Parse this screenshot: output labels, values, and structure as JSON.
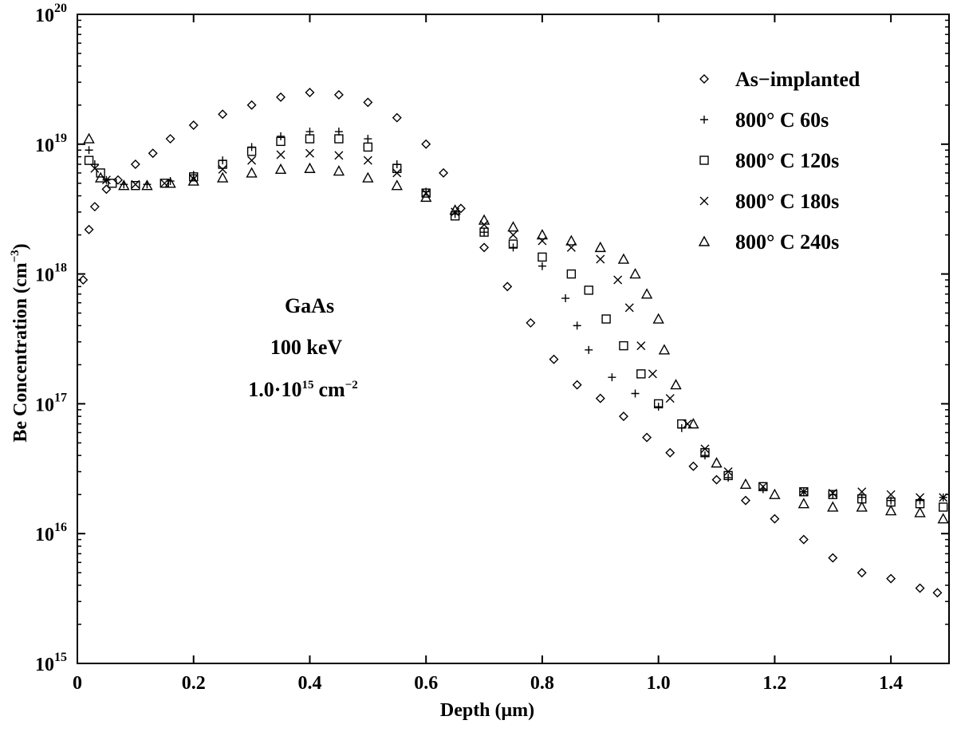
{
  "chart_data": {
    "type": "scatter",
    "title": "",
    "xlabel": "Depth (μm)",
    "ylabel_main": "Be Concentration (cm",
    "ylabel_exp": "−3",
    "ylabel_close": ")",
    "xlim": [
      0,
      1.5
    ],
    "ylim_log10": [
      15,
      20
    ],
    "yscale": "log",
    "grid": false,
    "x_ticks": [
      {
        "value": 0,
        "label": "0"
      },
      {
        "value": 0.2,
        "label": "0.2"
      },
      {
        "value": 0.4,
        "label": "0.4"
      },
      {
        "value": 0.6,
        "label": "0.6"
      },
      {
        "value": 0.8,
        "label": "0.8"
      },
      {
        "value": 1.0,
        "label": "1.0"
      },
      {
        "value": 1.2,
        "label": "1.2"
      },
      {
        "value": 1.4,
        "label": "1.4"
      }
    ],
    "y_ticks": [
      {
        "exp": 15,
        "base": "10",
        "sup": "15"
      },
      {
        "exp": 16,
        "base": "10",
        "sup": "16"
      },
      {
        "exp": 17,
        "base": "10",
        "sup": "17"
      },
      {
        "exp": 18,
        "base": "10",
        "sup": "18"
      },
      {
        "exp": 19,
        "base": "10",
        "sup": "19"
      },
      {
        "exp": 20,
        "base": "10",
        "sup": "20"
      }
    ],
    "legend_position": "top-right",
    "annotations": {
      "material": "GaAs",
      "energy": "100 keV",
      "dose_base": "1.0·10",
      "dose_exp": "15",
      "dose_unit": "cm",
      "dose_unit_exp": "−2"
    },
    "series": [
      {
        "name": "As−implanted",
        "marker": "diamond",
        "points": [
          [
            0.01,
            9e+17
          ],
          [
            0.02,
            2.2e+18
          ],
          [
            0.03,
            3.3e+18
          ],
          [
            0.05,
            4.5e+18
          ],
          [
            0.07,
            5.3e+18
          ],
          [
            0.1,
            7e+18
          ],
          [
            0.13,
            8.5e+18
          ],
          [
            0.16,
            1.1e+19
          ],
          [
            0.2,
            1.4e+19
          ],
          [
            0.25,
            1.7e+19
          ],
          [
            0.3,
            2e+19
          ],
          [
            0.35,
            2.3e+19
          ],
          [
            0.4,
            2.5e+19
          ],
          [
            0.45,
            2.4e+19
          ],
          [
            0.5,
            2.1e+19
          ],
          [
            0.55,
            1.6e+19
          ],
          [
            0.6,
            1e+19
          ],
          [
            0.63,
            6e+18
          ],
          [
            0.66,
            3.2e+18
          ],
          [
            0.7,
            1.6e+18
          ],
          [
            0.74,
            8e+17
          ],
          [
            0.78,
            4.2e+17
          ],
          [
            0.82,
            2.2e+17
          ],
          [
            0.86,
            1.4e+17
          ],
          [
            0.9,
            1.1e+17
          ],
          [
            0.94,
            8e+16
          ],
          [
            0.98,
            5.5e+16
          ],
          [
            1.02,
            4.2e+16
          ],
          [
            1.06,
            3.3e+16
          ],
          [
            1.1,
            2.6e+16
          ],
          [
            1.15,
            1.8e+16
          ],
          [
            1.2,
            1.3e+16
          ],
          [
            1.25,
            9000000000000000.0
          ],
          [
            1.3,
            6500000000000000.0
          ],
          [
            1.35,
            5000000000000000.0
          ],
          [
            1.4,
            4500000000000000.0
          ],
          [
            1.45,
            3800000000000000.0
          ],
          [
            1.48,
            3500000000000000.0
          ]
        ]
      },
      {
        "name": "800° C 60s",
        "marker": "plus",
        "points": [
          [
            0.02,
            9e+18
          ],
          [
            0.03,
            7e+18
          ],
          [
            0.05,
            5.3e+18
          ],
          [
            0.08,
            4.9e+18
          ],
          [
            0.12,
            4.9e+18
          ],
          [
            0.16,
            5.2e+18
          ],
          [
            0.2,
            5.8e+18
          ],
          [
            0.25,
            7.5e+18
          ],
          [
            0.3,
            9.5e+18
          ],
          [
            0.35,
            1.15e+19
          ],
          [
            0.4,
            1.25e+19
          ],
          [
            0.45,
            1.25e+19
          ],
          [
            0.5,
            1.1e+19
          ],
          [
            0.55,
            7e+18
          ],
          [
            0.6,
            4.3e+18
          ],
          [
            0.65,
            2.9e+18
          ],
          [
            0.7,
            2.1e+18
          ],
          [
            0.75,
            1.6e+18
          ],
          [
            0.8,
            1.15e+18
          ],
          [
            0.84,
            6.5e+17
          ],
          [
            0.86,
            4e+17
          ],
          [
            0.88,
            2.6e+17
          ],
          [
            0.92,
            1.6e+17
          ],
          [
            0.96,
            1.2e+17
          ],
          [
            1.0,
            9.5e+16
          ],
          [
            1.04,
            6.5e+16
          ],
          [
            1.08,
            4e+16
          ],
          [
            1.12,
            2.7e+16
          ],
          [
            1.18,
            2.2e+16
          ],
          [
            1.25,
            2.1e+16
          ],
          [
            1.3,
            2e+16
          ],
          [
            1.35,
            1.9e+16
          ],
          [
            1.4,
            1.8e+16
          ],
          [
            1.45,
            1.8e+16
          ],
          [
            1.49,
            1.9e+16
          ]
        ]
      },
      {
        "name": "800° C 120s",
        "marker": "square",
        "points": [
          [
            0.02,
            7.5e+18
          ],
          [
            0.04,
            6e+18
          ],
          [
            0.06,
            5e+18
          ],
          [
            0.1,
            4.8e+18
          ],
          [
            0.15,
            5e+18
          ],
          [
            0.2,
            5.6e+18
          ],
          [
            0.25,
            7e+18
          ],
          [
            0.3,
            8.8e+18
          ],
          [
            0.35,
            1.05e+19
          ],
          [
            0.4,
            1.1e+19
          ],
          [
            0.45,
            1.1e+19
          ],
          [
            0.5,
            9.5e+18
          ],
          [
            0.55,
            6.5e+18
          ],
          [
            0.6,
            4.2e+18
          ],
          [
            0.65,
            2.8e+18
          ],
          [
            0.7,
            2.1e+18
          ],
          [
            0.75,
            1.7e+18
          ],
          [
            0.8,
            1.35e+18
          ],
          [
            0.85,
            1e+18
          ],
          [
            0.88,
            7.5e+17
          ],
          [
            0.91,
            4.5e+17
          ],
          [
            0.94,
            2.8e+17
          ],
          [
            0.97,
            1.7e+17
          ],
          [
            1.0,
            1e+17
          ],
          [
            1.04,
            7e+16
          ],
          [
            1.08,
            4.2e+16
          ],
          [
            1.12,
            2.8e+16
          ],
          [
            1.18,
            2.3e+16
          ],
          [
            1.25,
            2.1e+16
          ],
          [
            1.3,
            2e+16
          ],
          [
            1.35,
            1.85e+16
          ],
          [
            1.4,
            1.75e+16
          ],
          [
            1.45,
            1.7e+16
          ],
          [
            1.49,
            1.6e+16
          ]
        ]
      },
      {
        "name": "800° C 180s",
        "marker": "cross",
        "points": [
          [
            0.03,
            6.5e+18
          ],
          [
            0.05,
            5.3e+18
          ],
          [
            0.1,
            4.9e+18
          ],
          [
            0.15,
            5e+18
          ],
          [
            0.2,
            5.4e+18
          ],
          [
            0.25,
            6.4e+18
          ],
          [
            0.3,
            7.5e+18
          ],
          [
            0.35,
            8.3e+18
          ],
          [
            0.4,
            8.5e+18
          ],
          [
            0.45,
            8.2e+18
          ],
          [
            0.5,
            7.5e+18
          ],
          [
            0.55,
            6e+18
          ],
          [
            0.6,
            4.2e+18
          ],
          [
            0.65,
            3e+18
          ],
          [
            0.7,
            2.4e+18
          ],
          [
            0.75,
            2e+18
          ],
          [
            0.8,
            1.8e+18
          ],
          [
            0.85,
            1.6e+18
          ],
          [
            0.9,
            1.3e+18
          ],
          [
            0.93,
            9e+17
          ],
          [
            0.95,
            5.5e+17
          ],
          [
            0.97,
            2.8e+17
          ],
          [
            0.99,
            1.7e+17
          ],
          [
            1.02,
            1.1e+17
          ],
          [
            1.05,
            7e+16
          ],
          [
            1.08,
            4.5e+16
          ],
          [
            1.12,
            3e+16
          ],
          [
            1.18,
            2.3e+16
          ],
          [
            1.25,
            2.1e+16
          ],
          [
            1.3,
            2.05e+16
          ],
          [
            1.35,
            2.1e+16
          ],
          [
            1.4,
            2e+16
          ],
          [
            1.45,
            1.9e+16
          ],
          [
            1.49,
            1.9e+16
          ]
        ]
      },
      {
        "name": "800° C 240s",
        "marker": "triangle",
        "points": [
          [
            0.02,
            1.1e+19
          ],
          [
            0.04,
            5.5e+18
          ],
          [
            0.08,
            4.8e+18
          ],
          [
            0.12,
            4.8e+18
          ],
          [
            0.16,
            5e+18
          ],
          [
            0.2,
            5.2e+18
          ],
          [
            0.25,
            5.5e+18
          ],
          [
            0.3,
            6e+18
          ],
          [
            0.35,
            6.4e+18
          ],
          [
            0.4,
            6.5e+18
          ],
          [
            0.45,
            6.2e+18
          ],
          [
            0.5,
            5.5e+18
          ],
          [
            0.55,
            4.8e+18
          ],
          [
            0.6,
            3.9e+18
          ],
          [
            0.65,
            3.1e+18
          ],
          [
            0.7,
            2.6e+18
          ],
          [
            0.75,
            2.3e+18
          ],
          [
            0.8,
            2e+18
          ],
          [
            0.85,
            1.8e+18
          ],
          [
            0.9,
            1.6e+18
          ],
          [
            0.94,
            1.3e+18
          ],
          [
            0.96,
            1e+18
          ],
          [
            0.98,
            7e+17
          ],
          [
            1.0,
            4.5e+17
          ],
          [
            1.01,
            2.6e+17
          ],
          [
            1.03,
            1.4e+17
          ],
          [
            1.06,
            7e+16
          ],
          [
            1.1,
            3.5e+16
          ],
          [
            1.15,
            2.4e+16
          ],
          [
            1.2,
            2e+16
          ],
          [
            1.25,
            1.7e+16
          ],
          [
            1.3,
            1.6e+16
          ],
          [
            1.35,
            1.6e+16
          ],
          [
            1.4,
            1.5e+16
          ],
          [
            1.45,
            1.45e+16
          ],
          [
            1.49,
            1.3e+16
          ]
        ]
      }
    ]
  },
  "colors": {
    "axis": "#000000",
    "marker": "#000000",
    "background": "#ffffff"
  }
}
